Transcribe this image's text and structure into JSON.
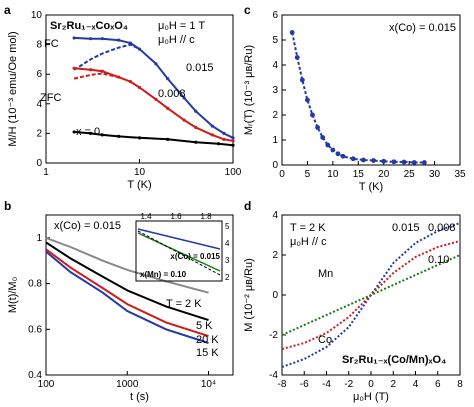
{
  "chart_data": [
    {
      "panel": "a",
      "type": "line",
      "xscale": "log",
      "xlim": [
        1,
        100
      ],
      "ylim": [
        0,
        10
      ],
      "xlabel": "T (K)",
      "ylabel": "M/H (10⁻³ emu/Oe mol)",
      "xticks": [
        "1",
        "10",
        "100"
      ],
      "yticks": [
        "0",
        "2",
        "4",
        "6",
        "8",
        "10"
      ],
      "title_text": "Sr₂Ru₁₋ₓCoₓO₄",
      "annotations": [
        "μ₀H = 1 T",
        "μ₀H // c",
        "FC",
        "ZFC"
      ],
      "series": [
        {
          "name": "0.015",
          "color": "#2438a6",
          "fc": [
            [
              2,
              8.45
            ],
            [
              3,
              8.4
            ],
            [
              4,
              8.4
            ],
            [
              6,
              8.3
            ],
            [
              8,
              8.1
            ],
            [
              10,
              7.7
            ],
            [
              15,
              6.7
            ],
            [
              20,
              5.7
            ],
            [
              30,
              4.4
            ],
            [
              40,
              3.5
            ],
            [
              60,
              2.5
            ],
            [
              80,
              2.0
            ],
            [
              100,
              1.7
            ]
          ],
          "zfc": [
            [
              2,
              6.3
            ],
            [
              3,
              7.0
            ],
            [
              4,
              7.4
            ],
            [
              6,
              7.8
            ],
            [
              8,
              8.0
            ],
            [
              10,
              7.7
            ]
          ]
        },
        {
          "name": "0.008",
          "color": "#d01b1b",
          "fc": [
            [
              2,
              6.4
            ],
            [
              3,
              6.3
            ],
            [
              4,
              6.2
            ],
            [
              6,
              5.8
            ],
            [
              8,
              5.5
            ],
            [
              10,
              5.1
            ],
            [
              15,
              4.3
            ],
            [
              20,
              3.7
            ],
            [
              30,
              2.9
            ],
            [
              40,
              2.4
            ],
            [
              60,
              1.9
            ],
            [
              80,
              1.6
            ],
            [
              100,
              1.5
            ]
          ],
          "zfc": [
            [
              2,
              5.7
            ],
            [
              3,
              5.95
            ],
            [
              4,
              6.05
            ],
            [
              6,
              5.8
            ]
          ]
        },
        {
          "name": "x = 0",
          "color": "#000000",
          "fc": [
            [
              2,
              2.1
            ],
            [
              3,
              2.0
            ],
            [
              4,
              1.9
            ],
            [
              6,
              1.8
            ],
            [
              10,
              1.7
            ],
            [
              20,
              1.6
            ],
            [
              40,
              1.4
            ],
            [
              70,
              1.3
            ],
            [
              100,
              1.2
            ]
          ]
        }
      ]
    },
    {
      "panel": "b",
      "type": "line",
      "xscale": "log",
      "xlim": [
        100,
        20000
      ],
      "ylim": [
        0.4,
        1.1
      ],
      "xlabel": "t (s)",
      "ylabel": "M(t)/M₀",
      "xticks": [
        "100",
        "1000",
        "10⁴"
      ],
      "yticks": [
        "0.4",
        "0.6",
        "0.8",
        "1"
      ],
      "title_text": "x(Co) = 0.015",
      "series": [
        {
          "name": "T = 2 K",
          "color": "#888888",
          "points": [
            [
              100,
              1.0
            ],
            [
              200,
              0.96
            ],
            [
              500,
              0.9
            ],
            [
              1000,
              0.86
            ],
            [
              3000,
              0.81
            ],
            [
              10000,
              0.76
            ]
          ]
        },
        {
          "name": "5 K",
          "color": "#000000",
          "points": [
            [
              100,
              0.98
            ],
            [
              200,
              0.91
            ],
            [
              500,
              0.83
            ],
            [
              1000,
              0.77
            ],
            [
              3000,
              0.7
            ],
            [
              10000,
              0.64
            ]
          ]
        },
        {
          "name": "20 K",
          "color": "#d01b1b",
          "points": [
            [
              100,
              0.95
            ],
            [
              200,
              0.87
            ],
            [
              500,
              0.78
            ],
            [
              1000,
              0.71
            ],
            [
              3000,
              0.63
            ],
            [
              10000,
              0.57
            ]
          ]
        },
        {
          "name": "15 K",
          "color": "#2438a6",
          "points": [
            [
              100,
              0.94
            ],
            [
              200,
              0.85
            ],
            [
              500,
              0.76
            ],
            [
              1000,
              0.68
            ],
            [
              3000,
              0.6
            ],
            [
              10000,
              0.54
            ]
          ]
        }
      ],
      "inset": {
        "xlabel": "T⁰·⁰⁶ (s⁰·⁰⁶)",
        "ylabel": "Lᵣ(M) (a.u.)",
        "xticks": [
          "1.4",
          "1.6",
          "1.8"
        ],
        "yticks": [
          "2",
          "3",
          "4",
          "5"
        ],
        "labels": [
          "x(Co) = 0.015",
          "x(Mn) = 0.10"
        ]
      }
    },
    {
      "panel": "c",
      "type": "scatter",
      "xlim": [
        0,
        35
      ],
      "ylim": [
        0,
        6
      ],
      "xlabel": "T (K)",
      "ylabel": "Mᵣ(T) (10⁻³ μʙ/Ru)",
      "xticks": [
        "0",
        "5",
        "10",
        "15",
        "20",
        "25",
        "30",
        "35"
      ],
      "yticks": [
        "0",
        "1",
        "2",
        "3",
        "4",
        "5",
        "6"
      ],
      "title_text": "x(Co) = 0.015",
      "series": [
        {
          "name": "",
          "color": "#2438a6",
          "points": [
            [
              2,
              5.3
            ],
            [
              3,
              4.3
            ],
            [
              4,
              3.4
            ],
            [
              5,
              2.6
            ],
            [
              6,
              2.0
            ],
            [
              7,
              1.5
            ],
            [
              8,
              1.1
            ],
            [
              9,
              0.8
            ],
            [
              10,
              0.6
            ],
            [
              11,
              0.45
            ],
            [
              12,
              0.35
            ],
            [
              14,
              0.25
            ],
            [
              16,
              0.2
            ],
            [
              18,
              0.18
            ],
            [
              20,
              0.15
            ],
            [
              22,
              0.13
            ],
            [
              24,
              0.12
            ],
            [
              26,
              0.1
            ],
            [
              28,
              0.1
            ]
          ]
        }
      ]
    },
    {
      "panel": "d",
      "type": "line",
      "xlim": [
        -8,
        8
      ],
      "ylim": [
        -4,
        4
      ],
      "xlabel": "μ₀H (T)",
      "ylabel": "M (10⁻² μʙ/Ru)",
      "xticks": [
        "-8",
        "-6",
        "-4",
        "-2",
        "0",
        "2",
        "4",
        "6",
        "8"
      ],
      "yticks": [
        "-4",
        "-2",
        "0",
        "2",
        "4"
      ],
      "title_text": "Sr₂Ru₁₋ₓ(Co/Mn)ₓO₄",
      "annotations": [
        "T = 2 K",
        "μ₀H // c",
        "Mn",
        "Co"
      ],
      "series": [
        {
          "name": "0.015",
          "color": "#2438a6",
          "points": [
            [
              -8,
              -3.6
            ],
            [
              -6,
              -3.2
            ],
            [
              -4,
              -2.6
            ],
            [
              -2,
              -1.6
            ],
            [
              0,
              0
            ],
            [
              2,
              1.6
            ],
            [
              4,
              2.6
            ],
            [
              6,
              3.2
            ],
            [
              8,
              3.6
            ]
          ]
        },
        {
          "name": "0.008",
          "color": "#d01b1b",
          "points": [
            [
              -8,
              -2.7
            ],
            [
              -6,
              -2.4
            ],
            [
              -4,
              -1.9
            ],
            [
              -2,
              -1.1
            ],
            [
              0,
              0
            ],
            [
              2,
              1.1
            ],
            [
              4,
              1.9
            ],
            [
              6,
              2.4
            ],
            [
              8,
              2.7
            ]
          ]
        },
        {
          "name": "0.10",
          "color": "#1a7a1a",
          "points": [
            [
              -8,
              -2.0
            ],
            [
              -4,
              -1.0
            ],
            [
              0,
              0
            ],
            [
              4,
              1.0
            ],
            [
              8,
              2.0
            ]
          ]
        }
      ]
    }
  ]
}
